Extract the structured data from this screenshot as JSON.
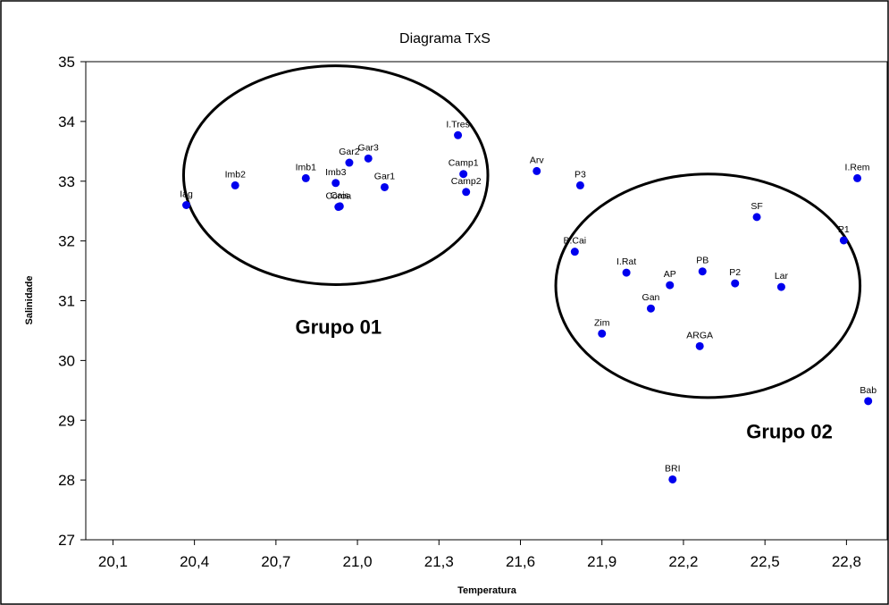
{
  "chart_data": {
    "type": "scatter",
    "title": "Diagrama TxS",
    "xlabel": "Temperatura",
    "ylabel": "Salinidade",
    "xlim": [
      20.0,
      22.95
    ],
    "ylim": [
      27,
      35
    ],
    "xticks": [
      "20,1",
      "20,4",
      "20,7",
      "21,0",
      "21,3",
      "21,6",
      "21,9",
      "22,2",
      "22,5",
      "22,8"
    ],
    "yticks": [
      "27",
      "28",
      "29",
      "30",
      "31",
      "32",
      "33",
      "34",
      "35"
    ],
    "grid": false,
    "point_color": "#0000ee",
    "points": [
      {
        "label": "Iag",
        "x": 20.37,
        "y": 32.6
      },
      {
        "label": "Imb2",
        "x": 20.55,
        "y": 32.93
      },
      {
        "label": "Imb1",
        "x": 20.81,
        "y": 33.05
      },
      {
        "label": "Imb3",
        "x": 20.92,
        "y": 32.97
      },
      {
        "label": "Gar2",
        "x": 20.97,
        "y": 33.31
      },
      {
        "label": "Gar3",
        "x": 21.04,
        "y": 33.38
      },
      {
        "label": "Gar1",
        "x": 21.1,
        "y": 32.9
      },
      {
        "label": "Cais",
        "x": 20.935,
        "y": 32.58
      },
      {
        "label": "Coroa",
        "x": 20.93,
        "y": 32.57
      },
      {
        "label": "I.Tres",
        "x": 21.37,
        "y": 33.77
      },
      {
        "label": "Camp1",
        "x": 21.39,
        "y": 33.12
      },
      {
        "label": "Camp2",
        "x": 21.4,
        "y": 32.82
      },
      {
        "label": "Arv",
        "x": 21.66,
        "y": 33.17
      },
      {
        "label": "P3",
        "x": 21.82,
        "y": 32.93
      },
      {
        "label": "I.Rem",
        "x": 22.84,
        "y": 33.05
      },
      {
        "label": "SF",
        "x": 22.47,
        "y": 32.4
      },
      {
        "label": "P1",
        "x": 22.79,
        "y": 32.01
      },
      {
        "label": "B.Cai",
        "x": 21.8,
        "y": 31.82
      },
      {
        "label": "I.Rat",
        "x": 21.99,
        "y": 31.47
      },
      {
        "label": "PB",
        "x": 22.27,
        "y": 31.49
      },
      {
        "label": "AP",
        "x": 22.15,
        "y": 31.26
      },
      {
        "label": "P2",
        "x": 22.39,
        "y": 31.29
      },
      {
        "label": "Lar",
        "x": 22.56,
        "y": 31.23
      },
      {
        "label": "Gan",
        "x": 22.08,
        "y": 30.87
      },
      {
        "label": "Zim",
        "x": 21.9,
        "y": 30.45
      },
      {
        "label": "ARGA",
        "x": 22.26,
        "y": 30.24
      },
      {
        "label": "Bab",
        "x": 22.88,
        "y": 29.32
      },
      {
        "label": "BRI",
        "x": 22.16,
        "y": 28.01
      }
    ],
    "annotations": [
      {
        "text": "Grupo 01",
        "x": 20.93,
        "y": 30.45
      },
      {
        "text": "Grupo 02",
        "x": 22.59,
        "y": 28.7
      }
    ],
    "ellipses": [
      {
        "name": "Grupo 01",
        "cx": 20.92,
        "cy": 33.1,
        "rx": 0.56,
        "ry": 1.83
      },
      {
        "name": "Grupo 02",
        "cx": 22.29,
        "cy": 31.25,
        "rx": 0.56,
        "ry": 1.87
      }
    ]
  }
}
